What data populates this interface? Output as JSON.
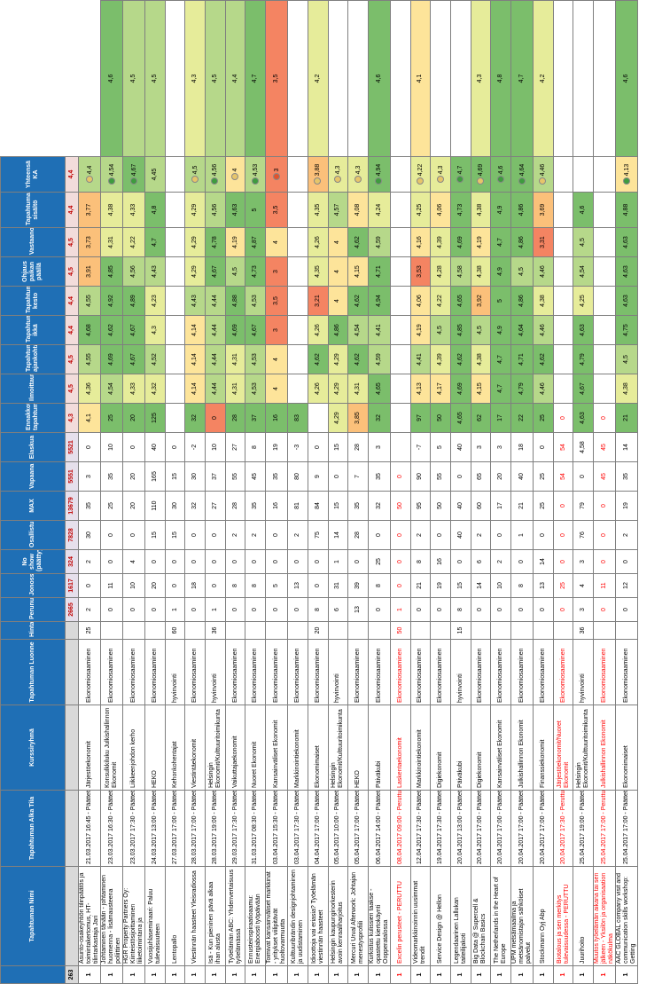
{
  "headers": [
    "",
    "Tapahtuman Nimi",
    "Tapahtuman Alka Tila",
    "Kurssiryhmä",
    "Tapahtuman Luonne",
    "Hinta",
    "Perunut",
    "Jonossa",
    "No show (päättyy)",
    "Osallistui",
    "MAX",
    "Vapaana",
    "Elaskua",
    "Ennakkotieto tapahtumasta",
    "Ilmoittautuminen",
    "Tapahtuman ajankohta",
    "Tapahtuman ikkä",
    "Tapahtuman kesto",
    "Ohjaus paikan päällä",
    "Vastaanotto",
    "Tapahtuman sisältö",
    "Yhteensä KA"
  ],
  "summary": [
    "263",
    "",
    "",
    "",
    "",
    "",
    "2665",
    "1617",
    "324",
    "7828",
    "13679",
    "5551",
    "5521",
    "4,3",
    "4,5",
    "4,5",
    "4,4",
    "4,4",
    "4,5",
    "4,5",
    "4,4",
    "4,4"
  ],
  "rows": [
    {
      "i": "1",
      "name": "Asunto-osakeyhtiön tilinpäätös ja toimintakertomus, HT-tilintarkastaja Jari",
      "when": "21.03.2017 16:45 - Päättetty",
      "group": "Järjestöekonomit",
      "type": "Ekonomiosaaminen",
      "v": [
        "25",
        "2",
        "0",
        "2",
        "30",
        "35",
        "3",
        "0",
        "4,1",
        "4,36",
        "4,55",
        "4,68",
        "4,55",
        "3,91",
        "3,73",
        "3,77",
        "4,4"
      ],
      "c": "cross"
    },
    {
      "i": "1",
      "name": "Johtaminen tänään - johtaminen huomenna - lisämausteena poliittinen",
      "when": "23.03.2017 16:30 - Päättetty",
      "group": "Konsulkkiluku Julkishallinnon Ekonomit",
      "type": "Ekonomiosaaminen",
      "v": [
        "",
        "0",
        "11",
        "0",
        "0",
        "25",
        "35",
        "10",
        "25",
        "4,54",
        "4,69",
        "4,62",
        "4,92",
        "4,85",
        "4,31",
        "4,38",
        "4,54",
        "4,6"
      ],
      "c": "green"
    },
    {
      "i": "1",
      "name": "HGR Property Partners Oy: Kiinteistösijoittaminen liiketoimintana ja",
      "when": "23.03.2017 17:30 - Päättetty",
      "group": "Liikkeenjohdon kerho",
      "type": "Ekonomiosaaminen",
      "v": [
        "",
        "0",
        "10",
        "4",
        "0",
        "20",
        "20",
        "0",
        "20",
        "4,33",
        "4,67",
        "4,67",
        "4,89",
        "4,56",
        "4,22",
        "4,33",
        "4,67",
        "4,5"
      ],
      "c": "green"
    },
    {
      "i": "1",
      "name": "Vuosijuhlaseminaari: Paluu tulevaisuuteen",
      "when": "24.03.2017 13:00 - Päättetty",
      "group": "HEKO",
      "type": "Ekonomiosaaminen",
      "v": [
        "",
        "0",
        "20",
        "0",
        "15",
        "110",
        "165",
        "40",
        "125",
        "4,32",
        "4,52",
        "4,3",
        "4,23",
        "4,43",
        "4,7",
        "4,8",
        "4,45",
        "4,5"
      ],
      "c": "plain"
    },
    {
      "i": "1",
      "name": "Lentopallo",
      "when": "27.03.2017 17:00 - Päättetty",
      "group": "Kehonkohentajat",
      "type": "hyvinvointi",
      "v": [
        "60",
        "1",
        "0",
        "0",
        "15",
        "30",
        "15",
        "0",
        "",
        "",
        "",
        "",
        "",
        "",
        "",
        "",
        "",
        ""
      ],
      "c": "plain"
    },
    {
      "i": "1",
      "name": "Viestinnän haasteet Yleisradiossa",
      "when": "28.03.2017 17:00 - Päättetty",
      "group": "Viestintäekonomit",
      "type": "Ekonomiosaaminen",
      "v": [
        "",
        "0",
        "18",
        "0",
        "0",
        "32",
        "30",
        "-2",
        "32",
        "4,14",
        "4,14",
        "4,14",
        "4,43",
        "4,29",
        "4,29",
        "4,29",
        "4,5",
        "4,3"
      ],
      "c": "cross"
    },
    {
      "i": "1",
      "name": "Isä - Kun pieninen pävä alkaa ihan alusta",
      "when": "28.03.2017 19:00 - Päättetty",
      "group": "Helsingin Ekonomit/Kulttuuritoimikunta",
      "type": "hyvinvointi",
      "v": [
        "36",
        "1",
        "0",
        "0",
        "0",
        "27",
        "37",
        "10",
        "0",
        "4,44",
        "4,44",
        "4,44",
        "4,44",
        "4,67",
        "4,78",
        "4,56",
        "4,56",
        "4,5"
      ],
      "c": "green"
    },
    {
      "i": "1",
      "name": "Työelämän ABC: Yhdenvertaisuus työelämässä",
      "when": "29.03.2017 17:30 - Päättetty",
      "group": "Vaikuttajaekonomit",
      "type": "Ekonomiosaaminen",
      "v": [
        "",
        "0",
        "8",
        "0",
        "2",
        "28",
        "55",
        "27",
        "28",
        "4,31",
        "4,31",
        "4,69",
        "4,88",
        "4,5",
        "4,19",
        "4,63",
        "4",
        "4,4"
      ],
      "c": "cross"
    },
    {
      "i": "1",
      "name": "Ennusteinspiraatioaamu: Energiaboosti työpäivään",
      "when": "31.03.2017 08:30 - Päättetty",
      "group": "Nuoret Ekonomit",
      "type": "Ekonomiosaaminen",
      "v": [
        "",
        "0",
        "8",
        "0",
        "2",
        "35",
        "45",
        "8",
        "37",
        "4,53",
        "4,53",
        "4,67",
        "4,53",
        "4,73",
        "4,87",
        "5",
        "4,53",
        "4,7"
      ],
      "c": "green"
    },
    {
      "i": "1",
      "name": "Toimivat kansainväliset markkinat - yritykset viilipitävät huoltovarmuutta",
      "when": "03.04.2017 15:30 - Päättetty",
      "group": "Kansainväliset Ekonomit",
      "type": "Ekonomiosaaminen",
      "v": [
        "",
        "0",
        "5",
        "0",
        "0",
        "16",
        "35",
        "19",
        "16",
        "4",
        "4",
        "3",
        "3,5",
        "3",
        "4",
        "3,5",
        "3",
        "3,5"
      ],
      "c": "red"
    },
    {
      "i": "1",
      "name": "Kulttuuribrändin designjohtaminen ja uudistaminen",
      "when": "03.04.2017 17:30 - Päättetty",
      "group": "Markkinointiekonomit",
      "type": "Ekonomiosaaminen",
      "v": [
        "",
        "0",
        "13",
        "0",
        "2",
        "81",
        "80",
        "-3",
        "83",
        "",
        "",
        "",
        "",
        "",
        "",
        "",
        "",
        ""
      ],
      "c": "plain"
    },
    {
      "i": "1",
      "name": "Idioottoja vai eriasia? Työelämän viestinnän haasteet",
      "when": "04.04.2017 17:00 - Päättetty",
      "group": "Ekonomimaiset",
      "type": "Ekonomiosaaminen",
      "v": [
        "20",
        "8",
        "0",
        "0",
        "75",
        "84",
        "9",
        "0",
        "",
        "4,26",
        "4,62",
        "4,26",
        "3,21",
        "4,35",
        "4,26",
        "4,35",
        "3,88",
        "4,2"
      ],
      "c": "cross"
    },
    {
      "i": "1",
      "name": "Helsingin kaupunginorkesterin avoin kenraaliharjoitus",
      "when": "05.04.2017 10:00 - Päättetty",
      "group": "Helsingin Ekonomit/Kulttuuritoimikunta",
      "type": "hyvinvointi",
      "v": [
        "",
        "6",
        "31",
        "1",
        "14",
        "15",
        "0",
        "15",
        "4,29",
        "4,29",
        "4,29",
        "4,86",
        "4",
        "4",
        "4",
        "4,57",
        "4,3",
        ""
      ],
      "c": "cross"
    },
    {
      "i": "1",
      "name": "Mercuri Urval Afterwork: Johtajan menestysprofiili",
      "when": "05.04.2017 17:00 - Päättetty",
      "group": "HEKO",
      "type": "Ekonomiosaaminen",
      "v": [
        "",
        "13",
        "39",
        "0",
        "28",
        "35",
        "7",
        "28",
        "3,85",
        "4,31",
        "4,62",
        "4,54",
        "4,62",
        "4,15",
        "4,62",
        "4,08",
        "4,3",
        ""
      ],
      "c": "cross"
    },
    {
      "i": "1",
      "name": "Kurkistus kulissien taakse - opastettu kiertokäynti Oopperatalossa",
      "when": "06.04.2017 14:00 - Päättetty",
      "group": "Päiväkubi",
      "type": "Ekonomiosaaminen",
      "v": [
        "",
        "0",
        "8",
        "25",
        "0",
        "32",
        "35",
        "3",
        "32",
        "4,65",
        "4,59",
        "4,41",
        "4,94",
        "4,71",
        "4,59",
        "4,24",
        "4,94",
        "4,6"
      ],
      "c": "green"
    },
    {
      "i": "1",
      "name": "Excelin perusteet - PERUTTU",
      "when": "08.04.2017 09:00 - Peruttu",
      "group": "Laskentaekonomit",
      "type": "Ekonomiosaaminen",
      "v": [
        "50",
        "1",
        "0",
        "0",
        "0",
        "50",
        "0",
        "",
        "",
        "",
        "",
        "",
        "",
        "",
        "",
        "",
        "",
        ""
      ],
      "c": "plain",
      "cancel": true
    },
    {
      "i": "1",
      "name": "Videomarkkinoinnin uusimmat trendit",
      "when": "12.04.2017 17:30 - Päättetty",
      "group": "Markkinointiekonomit",
      "type": "Ekonomiosaaminen",
      "v": [
        "",
        "0",
        "21",
        "8",
        "2",
        "95",
        "90",
        "-7",
        "97",
        "4,13",
        "4,41",
        "4,19",
        "4,06",
        "3,53",
        "4,16",
        "4,25",
        "4,22",
        "4,1"
      ],
      "c": "cross"
    },
    {
      "i": "1",
      "name": "Service Design @ Hellon",
      "when": "19.04.2017 17:30 - Päättetty",
      "group": "Digiekonomit",
      "type": "Ekonomiosaaminen",
      "v": [
        "",
        "0",
        "19",
        "16",
        "0",
        "50",
        "55",
        "5",
        "50",
        "4,17",
        "4,39",
        "4,5",
        "4,22",
        "4,28",
        "4,39",
        "4,06",
        "4,3",
        ""
      ],
      "c": "cross"
    },
    {
      "i": "1",
      "name": "Legendaarinen Lallukan taiteilijakoti",
      "when": "20.04.2017 13:00 - Päättetty",
      "group": "Päiväkubi",
      "type": "hyvinvointi",
      "v": [
        "15",
        "8",
        "15",
        "0",
        "40",
        "40",
        "0",
        "40",
        "4,65",
        "4,69",
        "4,62",
        "4,85",
        "4,65",
        "4,58",
        "4,69",
        "4,73",
        "4,7",
        ""
      ],
      "c": "green"
    },
    {
      "i": "1",
      "name": "Big Data @ Supercell & Blockchain Basics",
      "when": "20.04.2017 17:00 - Päättetty",
      "group": "Digiekonomit",
      "type": "Ekonomiosaaminen",
      "v": [
        "",
        "0",
        "14",
        "6",
        "2",
        "60",
        "65",
        "3",
        "62",
        "4,15",
        "4,38",
        "4,5",
        "3,92",
        "4,38",
        "4,19",
        "4,38",
        "4,69",
        "4,3"
      ],
      "c": "cross"
    },
    {
      "i": "1",
      "name": "The Netherlands in the Heart of Europe",
      "when": "20.04.2017 17:00 - Päättetty",
      "group": "Kansainväliset Ekonomit",
      "type": "Ekonomiosaaminen",
      "v": [
        "",
        "0",
        "10",
        "2",
        "0",
        "17",
        "20",
        "3",
        "17",
        "4,7",
        "4,7",
        "4,9",
        "5",
        "4,9",
        "4,7",
        "4,9",
        "4,6",
        "4,8"
      ],
      "c": "green"
    },
    {
      "i": "1",
      "name": "UPM metsämaailma ja metsänomistajan sähköiset palvelut",
      "when": "20.04.2017 17:00 - Päättetty",
      "group": "Julkishallinnon Ekonomit",
      "type": "Ekonomiosaaminen",
      "v": [
        "",
        "0",
        "8",
        "0",
        "1",
        "21",
        "40",
        "18",
        "22",
        "4,79",
        "4,71",
        "4,64",
        "4,86",
        "4,5",
        "4,86",
        "4,86",
        "4,64",
        "4,7"
      ],
      "c": "green"
    },
    {
      "i": "1",
      "name": "Stockmann Oyj Abp",
      "when": "20.04.2017 17:00 - Päättetty",
      "group": "Finanssiekonomit",
      "type": "Ekonomiosaaminen",
      "v": [
        "",
        "0",
        "13",
        "14",
        "0",
        "25",
        "25",
        "0",
        "25",
        "4,46",
        "4,62",
        "4,46",
        "4,38",
        "4,46",
        "3,31",
        "3,69",
        "4,46",
        "4,2"
      ],
      "c": "cross"
    },
    {
      "i": "1",
      "name": "Biotalous ja sen merkitys tulevaisuudessa - PERUTTU",
      "when": "20.04.2017 17:30 - Peruttu",
      "group": "Järjestöekonomit/Nuoret Ekonomit",
      "type": "Ekonomiosaaminen",
      "v": [
        "",
        "0",
        "25",
        "0",
        "0",
        "0",
        "54",
        "54",
        "0",
        "",
        "",
        "",
        "",
        "",
        "",
        "",
        "",
        ""
      ],
      "c": "plain",
      "cancel": true
    },
    {
      "i": "1",
      "name": "Juurihoito",
      "when": "25.04.2017 19:00 - Päättetty",
      "group": "Helsingin Ekonomit/Kulttuuritoimikunta",
      "type": "hyvinvointi",
      "v": [
        "36",
        "3",
        "4",
        "3",
        "76",
        "79",
        "0",
        "4,58",
        "4,63",
        "4,67",
        "4,79",
        "4,63",
        "4,25",
        "4,54",
        "4,5",
        "4,6",
        "",
        ""
      ],
      "c": "green"
    },
    {
      "i": "1",
      "name": "Muutos työelämän aikana tai sen jälkeen - Yksilön ja organisaation näkökulma",
      "when": "25.04.2017 17:00 - Peruttu",
      "group": "Julkishallinnon Ekonomit",
      "type": "Ekonomiosaaminen",
      "v": [
        "",
        "0",
        "11",
        "0",
        "0",
        "0",
        "45",
        "45",
        "0",
        "",
        "",
        "",
        "",
        "",
        "",
        "",
        "",
        ""
      ],
      "c": "plain",
      "cancel": true
    },
    {
      "i": "1",
      "name": "AAC GLOBAL company visit and communication skills workshop: Getting",
      "when": "25.04.2017 17:00 - Päättetty",
      "group": "Ekonomimaiset",
      "type": "Ekonomiosaaminen",
      "v": [
        "",
        "0",
        "12",
        "0",
        "2",
        "19",
        "35",
        "14",
        "21",
        "4,38",
        "4,5",
        "4,75",
        "4,63",
        "4,63",
        "4,63",
        "4,88",
        "4,13",
        "4,6"
      ],
      "c": "green"
    }
  ]
}
